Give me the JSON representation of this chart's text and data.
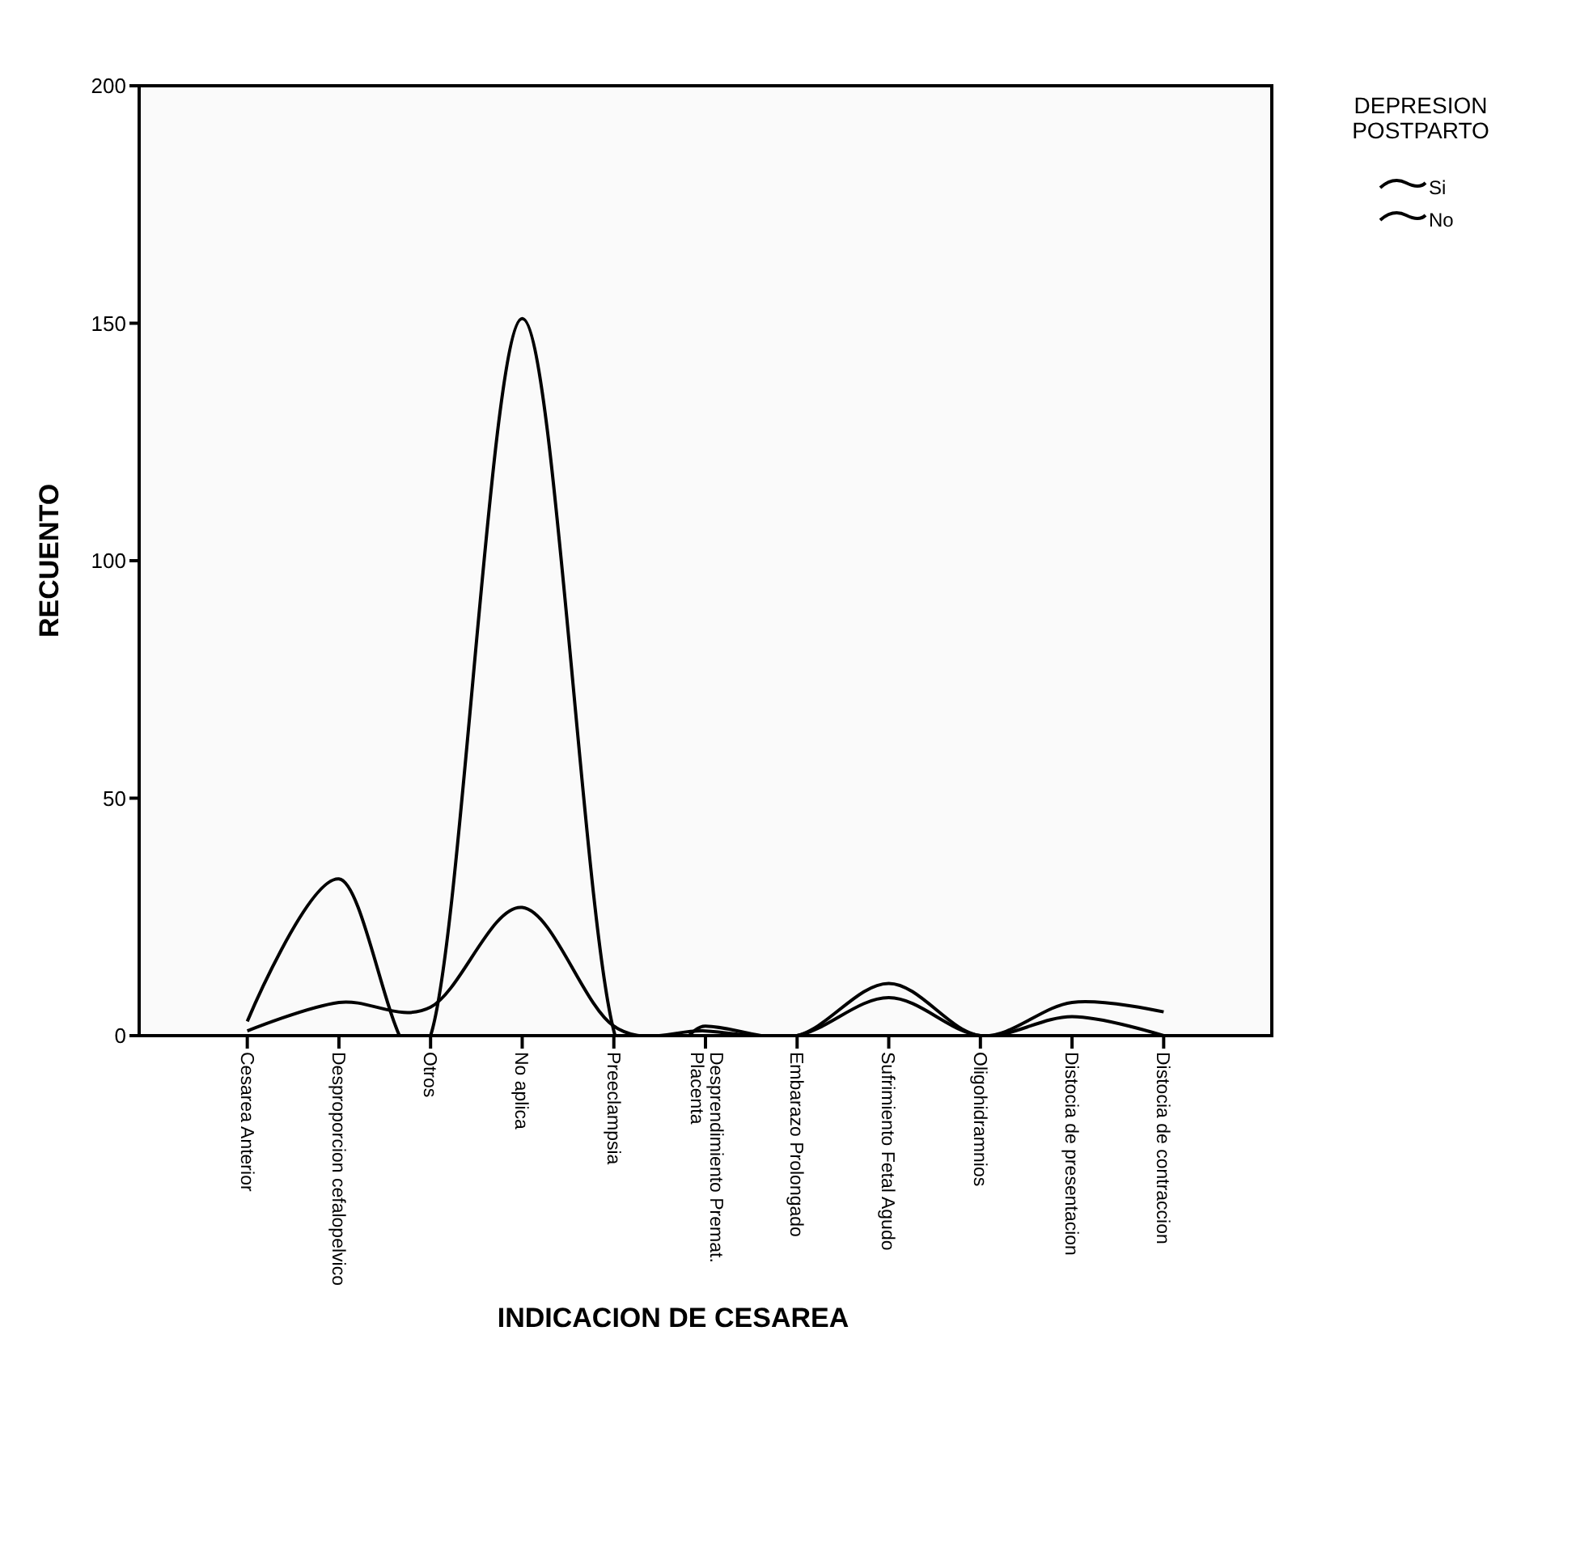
{
  "chart_data": {
    "type": "line",
    "xlabel": "INDICACION DE CESAREA",
    "ylabel": "RECUENTO",
    "legend_title": "DEPRESION\nPOSTPARTO",
    "legend": "top right",
    "categories": [
      "Cesarea Anterior",
      "Desproporcion cefalopelvico",
      "Otros",
      "No aplica",
      "Preeclampsia",
      "Desprendimiento Premat.\nPlacenta",
      "Embarazo Prolongado",
      "Sufrimiento Fetal Agudo",
      "Oligohidramnios",
      "Distocia de presentacion",
      "Distocia de contraccion"
    ],
    "series": [
      {
        "name": "Si",
        "color": "#000000",
        "values": [
          1,
          7,
          6,
          27,
          2,
          1,
          0,
          8,
          0,
          4,
          0
        ]
      },
      {
        "name": "No",
        "color": "#000000",
        "values": [
          3,
          33,
          0,
          151,
          1,
          2,
          0,
          11,
          0,
          7,
          5
        ]
      }
    ],
    "ylim": [
      0,
      200
    ],
    "yticks": [
      0,
      50,
      100,
      150,
      200
    ],
    "grid": false,
    "marker": "none",
    "line_style": "solid"
  }
}
